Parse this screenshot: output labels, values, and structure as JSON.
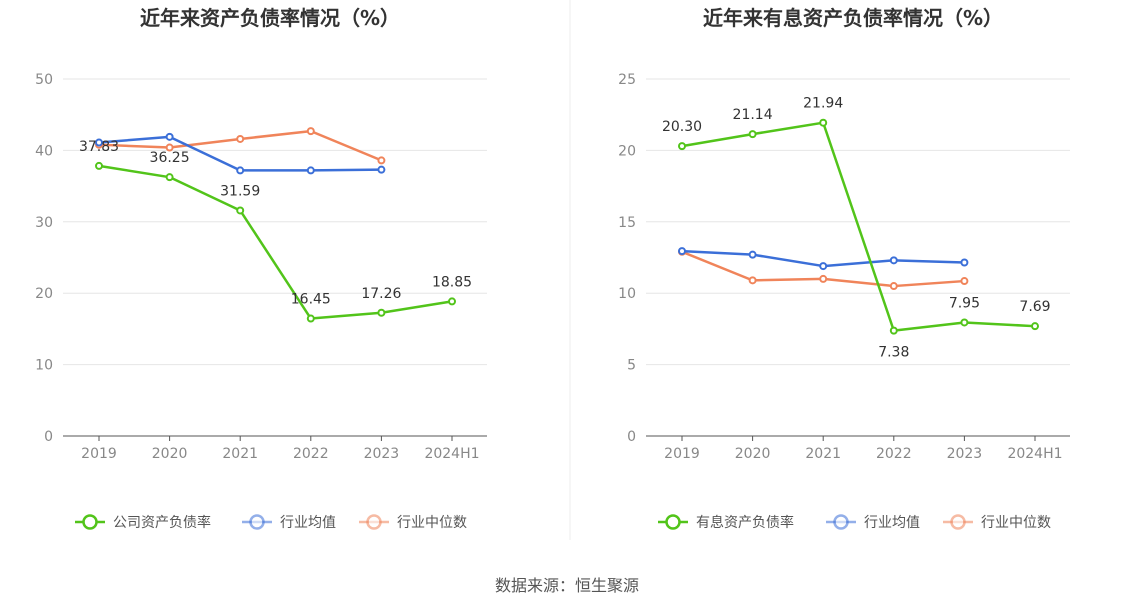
{
  "source": "数据来源：恒生聚源",
  "chart_data": [
    {
      "type": "line",
      "title": "近年来资产负债率情况（%）",
      "categories": [
        "2019",
        "2020",
        "2021",
        "2022",
        "2023",
        "2024H1"
      ],
      "ylim": [
        0,
        50
      ],
      "yticks": [
        "0",
        "10",
        "20",
        "30",
        "40",
        "50"
      ],
      "grid": true,
      "legend_position": "bottom",
      "series": [
        {
          "name": "公司资产负债率",
          "color": "#52c41a",
          "values": [
            37.83,
            36.25,
            31.59,
            16.45,
            17.26,
            18.85
          ],
          "labels": [
            "37.83",
            "36.25",
            "31.59",
            "16.45",
            "17.26",
            "18.85"
          ]
        },
        {
          "name": "行业均值",
          "color": "#3b6fd8",
          "values": [
            41.1,
            41.9,
            37.2,
            37.2,
            37.3,
            null
          ]
        },
        {
          "name": "行业中位数",
          "color": "#f0845a",
          "values": [
            40.8,
            40.4,
            41.6,
            42.7,
            38.6,
            null
          ]
        }
      ]
    },
    {
      "type": "line",
      "title": "近年来有息资产负债率情况（%）",
      "categories": [
        "2019",
        "2020",
        "2021",
        "2022",
        "2023",
        "2024H1"
      ],
      "ylim": [
        0,
        25
      ],
      "yticks": [
        "0",
        "5",
        "10",
        "15",
        "20",
        "25"
      ],
      "grid": true,
      "legend_position": "bottom",
      "series": [
        {
          "name": "有息资产负债率",
          "color": "#52c41a",
          "values": [
            20.3,
            21.14,
            21.94,
            7.38,
            7.95,
            7.69
          ],
          "labels": [
            "20.30",
            "21.14",
            "21.94",
            "7.38",
            "7.95",
            "7.69"
          ]
        },
        {
          "name": "行业均值",
          "color": "#3b6fd8",
          "values": [
            12.95,
            12.7,
            11.9,
            12.3,
            12.15,
            null
          ]
        },
        {
          "name": "行业中位数",
          "color": "#f0845a",
          "values": [
            12.9,
            10.9,
            11.0,
            10.5,
            10.85,
            null
          ]
        }
      ]
    }
  ]
}
